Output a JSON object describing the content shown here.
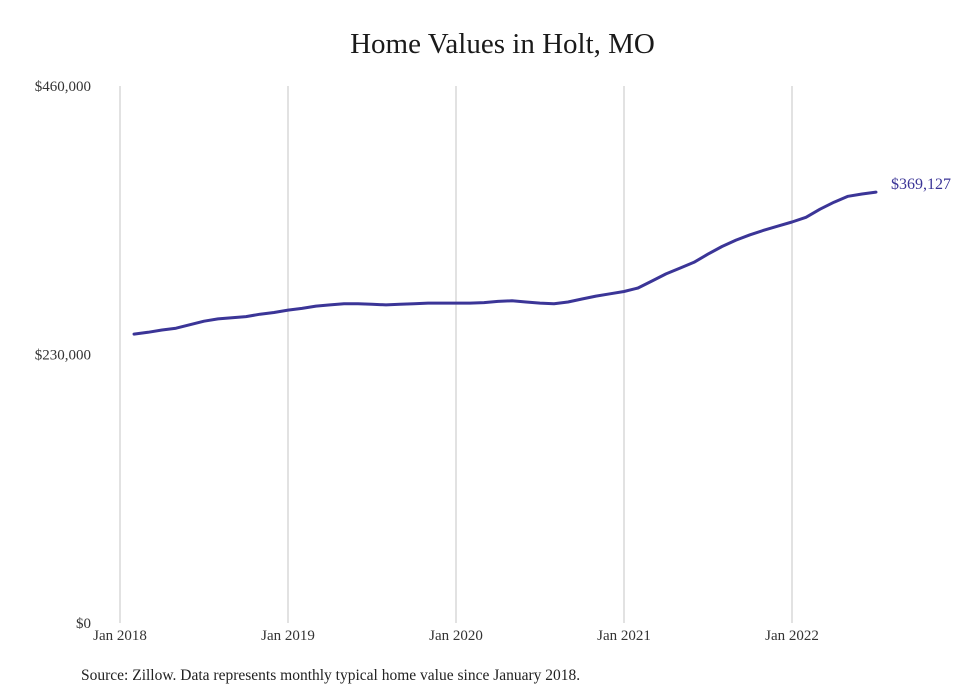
{
  "colors": {
    "line": "#3b3597",
    "grid": "#c4c4c4",
    "end_label": "#3b3597"
  },
  "source_note": "Source: Zillow. Data represents monthly typical home value since January 2018.",
  "chart_data": {
    "type": "line",
    "title": "Home Values in Holt, MO",
    "xlabel": "",
    "ylabel": "",
    "ylim": [
      0,
      460000
    ],
    "xlim": [
      "2018-01",
      "2022-07"
    ],
    "y_ticks": [
      {
        "value": 0,
        "label": "$0"
      },
      {
        "value": 230000,
        "label": "$230,000"
      },
      {
        "value": 460000,
        "label": "$460,000"
      }
    ],
    "x_ticks": [
      {
        "value": "2018-01",
        "label": "Jan 2018"
      },
      {
        "value": "2019-01",
        "label": "Jan 2019"
      },
      {
        "value": "2020-01",
        "label": "Jan 2020"
      },
      {
        "value": "2021-01",
        "label": "Jan 2021"
      },
      {
        "value": "2022-01",
        "label": "Jan 2022"
      }
    ],
    "grid": {
      "vertical": true,
      "horizontal": false
    },
    "end_label": "$369,127",
    "series": [
      {
        "x": [
          "2018-02",
          "2018-03",
          "2018-04",
          "2018-05",
          "2018-06",
          "2018-07",
          "2018-08",
          "2018-09",
          "2018-10",
          "2018-11",
          "2018-12",
          "2019-01",
          "2019-02",
          "2019-03",
          "2019-04",
          "2019-05",
          "2019-06",
          "2019-07",
          "2019-08",
          "2019-09",
          "2019-10",
          "2019-11",
          "2019-12",
          "2020-01",
          "2020-02",
          "2020-03",
          "2020-04",
          "2020-05",
          "2020-06",
          "2020-07",
          "2020-08",
          "2020-09",
          "2020-10",
          "2020-11",
          "2020-12",
          "2021-01",
          "2021-02",
          "2021-03",
          "2021-04",
          "2021-05",
          "2021-06",
          "2021-07",
          "2021-08",
          "2021-09",
          "2021-10",
          "2021-11",
          "2021-12",
          "2022-01",
          "2022-02",
          "2022-03",
          "2022-04",
          "2022-05",
          "2022-06",
          "2022-07"
        ],
        "values": [
          247500,
          249000,
          251000,
          252500,
          255500,
          258500,
          260500,
          261500,
          262500,
          264500,
          266000,
          268000,
          269500,
          271500,
          272500,
          273500,
          273500,
          273000,
          272500,
          273000,
          273500,
          274000,
          274000,
          274000,
          274000,
          274500,
          275500,
          276000,
          275000,
          274000,
          273500,
          275000,
          277500,
          280000,
          282000,
          284000,
          287000,
          293000,
          299000,
          304000,
          309000,
          316000,
          322500,
          328000,
          332500,
          336500,
          340000,
          343500,
          347500,
          354500,
          360500,
          365500,
          367500,
          369127
        ]
      }
    ]
  }
}
